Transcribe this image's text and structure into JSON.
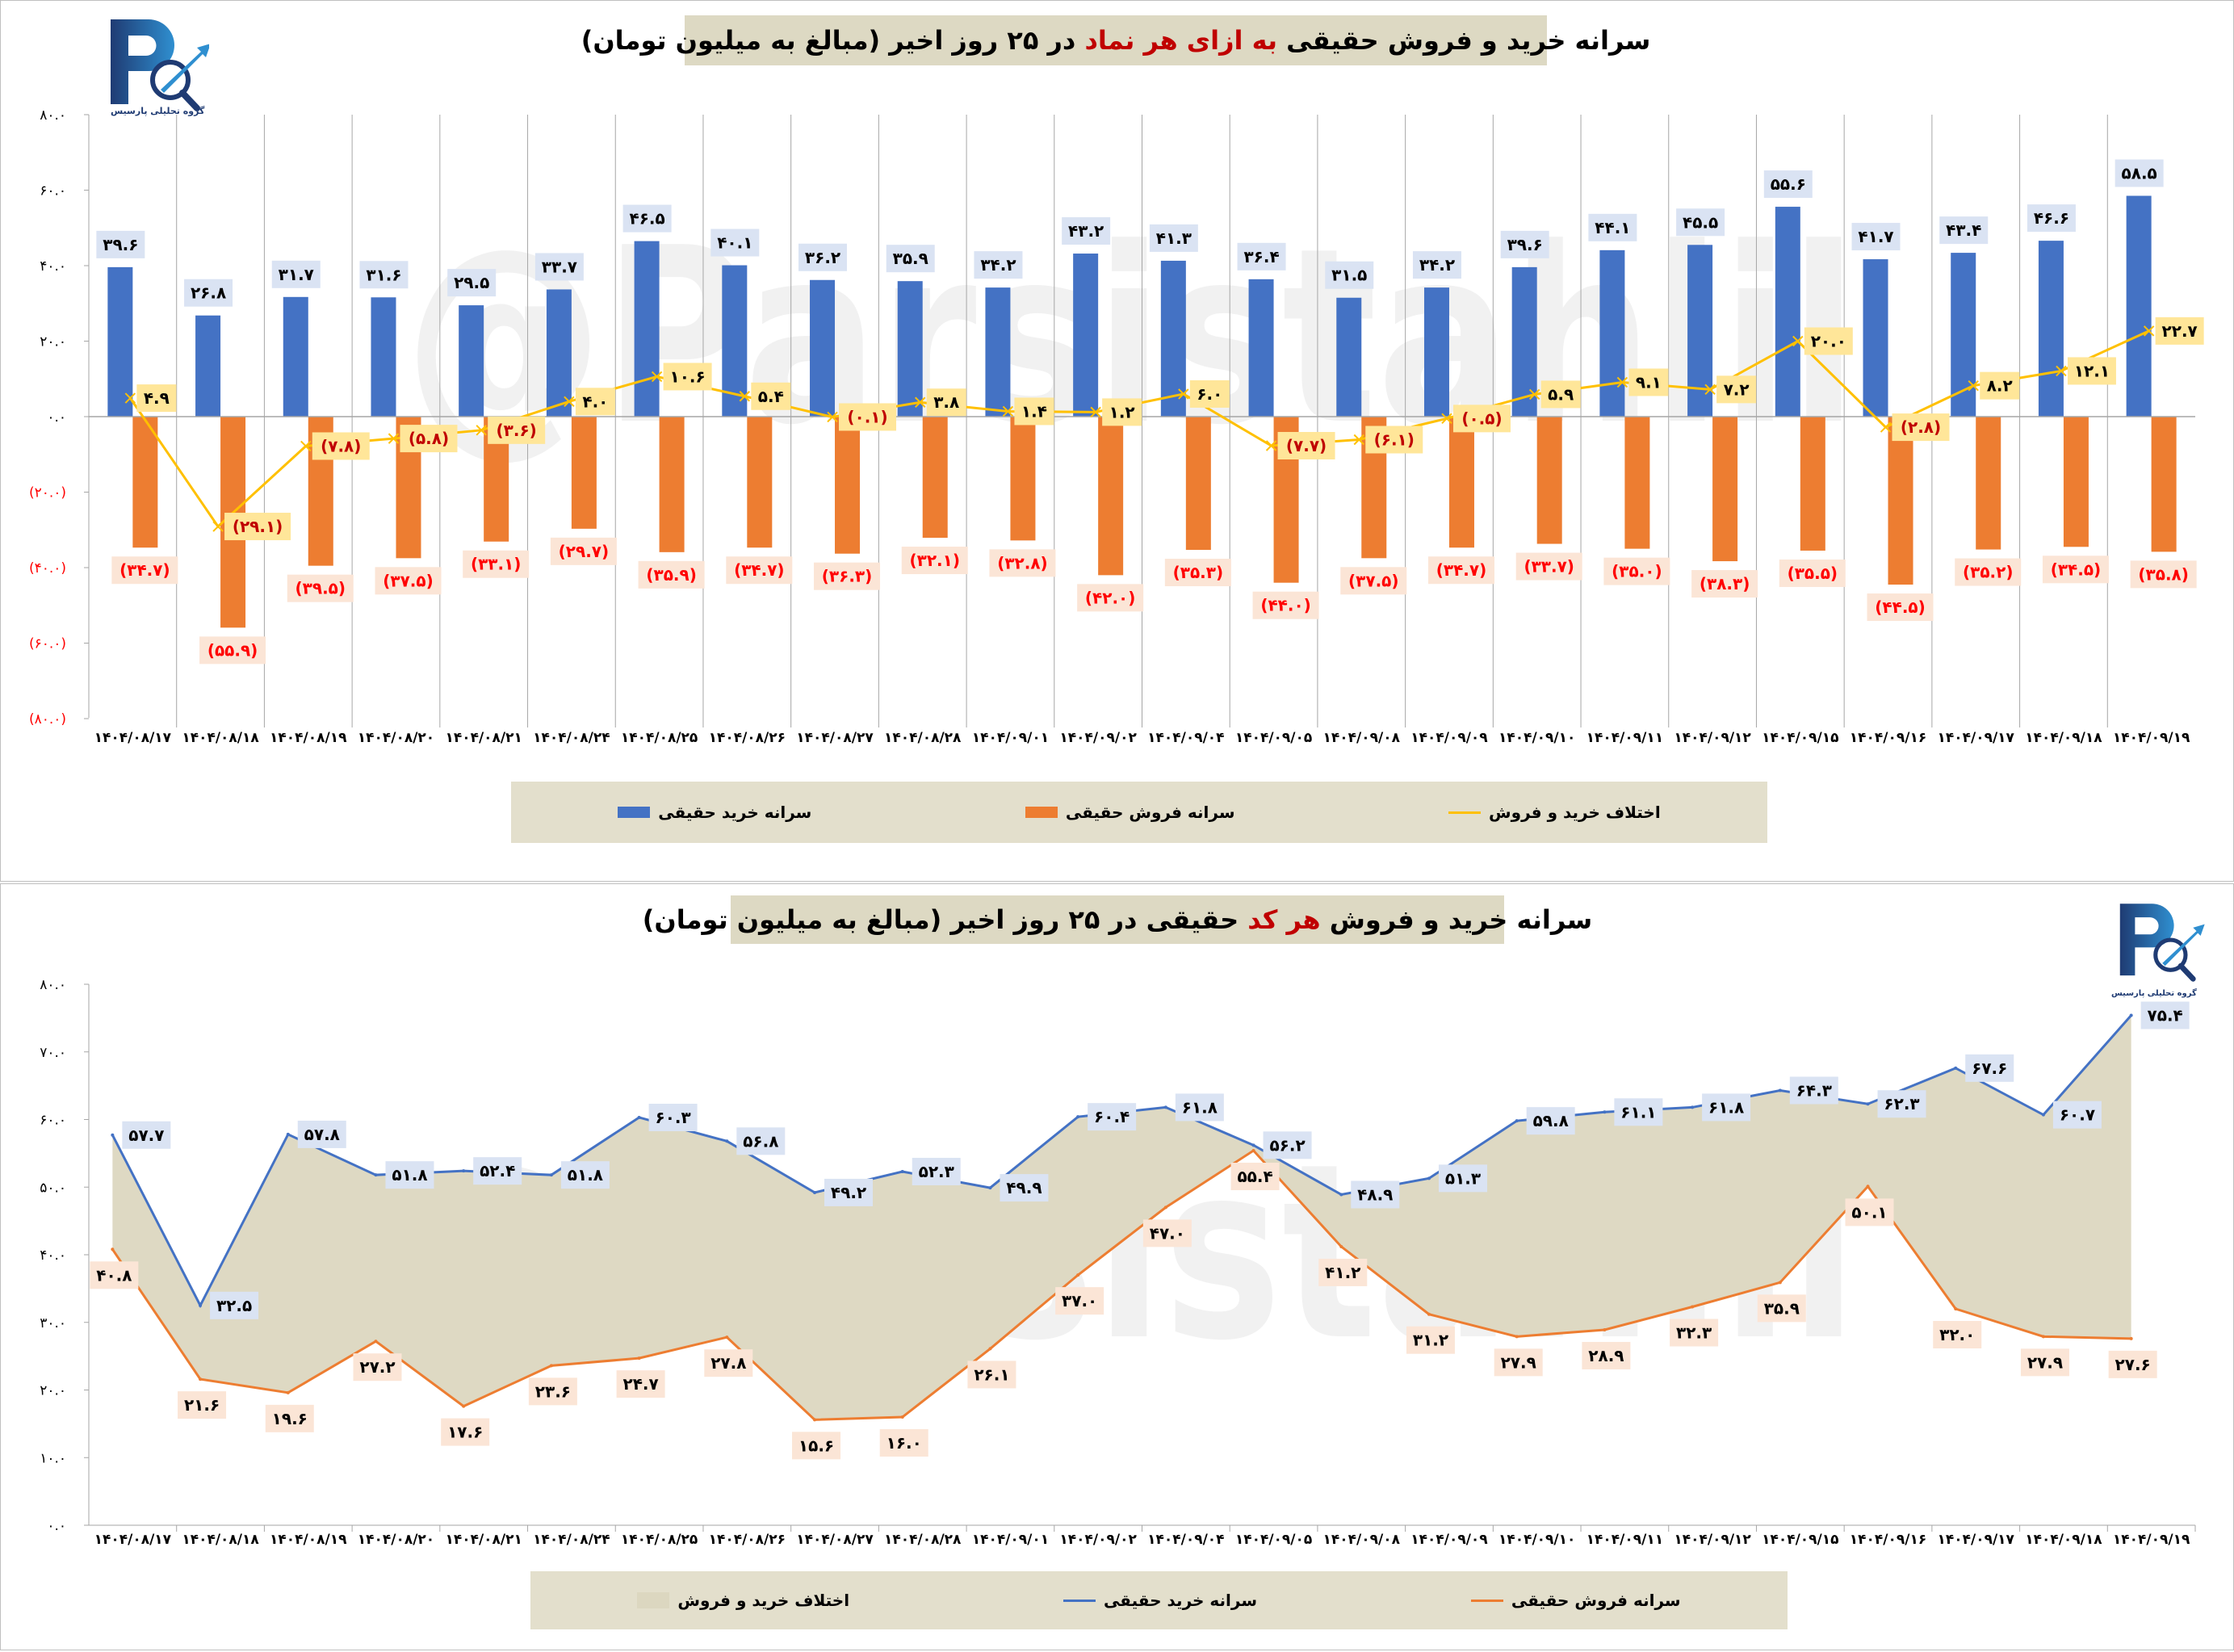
{
  "logo": {
    "text": "گروه تحلیلی پارسیس"
  },
  "watermark": "@Parsistahlil",
  "colors": {
    "buy": "#4472c4",
    "sell": "#ed7d31",
    "diff": "#ffc000",
    "area": "#dcd7c0",
    "title_red": "#c00000"
  },
  "chart_data": [
    {
      "type": "bar",
      "title": {
        "before": "سرانه خرید و فروش حقیقی",
        "highlight": "به ازای هر نماد",
        "after": "در ۲۵ روز اخیر (مبالغ به میلیون تومان)"
      },
      "categories": [
        "۱۴۰۴/۰۸/۱۷",
        "۱۴۰۴/۰۸/۱۸",
        "۱۴۰۴/۰۸/۱۹",
        "۱۴۰۴/۰۸/۲۰",
        "۱۴۰۴/۰۸/۲۱",
        "۱۴۰۴/۰۸/۲۴",
        "۱۴۰۴/۰۸/۲۵",
        "۱۴۰۴/۰۸/۲۶",
        "۱۴۰۴/۰۸/۲۷",
        "۱۴۰۴/۰۸/۲۸",
        "۱۴۰۴/۰۹/۰۱",
        "۱۴۰۴/۰۹/۰۲",
        "۱۴۰۴/۰۹/۰۴",
        "۱۴۰۴/۰۹/۰۵",
        "۱۴۰۴/۰۹/۰۸",
        "۱۴۰۴/۰۹/۰۹",
        "۱۴۰۴/۰۹/۱۰",
        "۱۴۰۴/۰۹/۱۱",
        "۱۴۰۴/۰۹/۱۲",
        "۱۴۰۴/۰۹/۱۵",
        "۱۴۰۴/۰۹/۱۶",
        "۱۴۰۴/۰۹/۱۷",
        "۱۴۰۴/۰۹/۱۸",
        "۱۴۰۴/۰۹/۱۹"
      ],
      "series": [
        {
          "name": "سرانه خرید حقیقی",
          "kind": "bar",
          "values": [
            39.6,
            26.8,
            31.7,
            31.6,
            29.5,
            33.7,
            46.5,
            40.1,
            36.2,
            35.9,
            34.2,
            43.2,
            41.3,
            36.4,
            31.5,
            34.2,
            39.6,
            44.1,
            45.5,
            55.6,
            41.7,
            43.4,
            46.6,
            58.5
          ]
        },
        {
          "name": "سرانه فروش حقیقی",
          "kind": "bar",
          "values": [
            -34.7,
            -55.9,
            -39.5,
            -37.5,
            -33.1,
            -29.7,
            -35.9,
            -34.7,
            -36.3,
            -32.1,
            -32.8,
            -42.0,
            -35.3,
            -44.0,
            -37.5,
            -34.7,
            -33.7,
            -35.0,
            -38.3,
            -35.5,
            -44.5,
            -35.2,
            -34.5,
            -35.8
          ]
        },
        {
          "name": "اختلاف خرید و فروش",
          "kind": "line",
          "values": [
            4.9,
            -29.1,
            -7.8,
            -5.8,
            -3.6,
            4.0,
            10.6,
            5.4,
            -0.1,
            3.8,
            1.4,
            1.2,
            6.0,
            -7.7,
            -6.1,
            -0.5,
            5.9,
            9.1,
            7.2,
            20.0,
            -2.8,
            8.2,
            12.1,
            22.7
          ]
        }
      ],
      "ylim": [
        -80,
        80
      ],
      "yticks": [
        80,
        60,
        40,
        20,
        0,
        -20,
        -40,
        -60,
        -80
      ],
      "grid": "vertical",
      "legend_placement": "bottom"
    },
    {
      "type": "line",
      "title": {
        "before": "سرانه خرید و فروش",
        "highlight": "هر کد",
        "after": "حقیقی در ۲۵ روز اخیر (مبالغ به میلیون تومان)"
      },
      "categories": [
        "۱۴۰۴/۰۸/۱۷",
        "۱۴۰۴/۰۸/۱۸",
        "۱۴۰۴/۰۸/۱۹",
        "۱۴۰۴/۰۸/۲۰",
        "۱۴۰۴/۰۸/۲۱",
        "۱۴۰۴/۰۸/۲۴",
        "۱۴۰۴/۰۸/۲۵",
        "۱۴۰۴/۰۸/۲۶",
        "۱۴۰۴/۰۸/۲۷",
        "۱۴۰۴/۰۸/۲۸",
        "۱۴۰۴/۰۹/۰۱",
        "۱۴۰۴/۰۹/۰۲",
        "۱۴۰۴/۰۹/۰۴",
        "۱۴۰۴/۰۹/۰۵",
        "۱۴۰۴/۰۹/۰۸",
        "۱۴۰۴/۰۹/۰۹",
        "۱۴۰۴/۰۹/۱۰",
        "۱۴۰۴/۰۹/۱۱",
        "۱۴۰۴/۰۹/۱۲",
        "۱۴۰۴/۰۹/۱۵",
        "۱۴۰۴/۰۹/۱۶",
        "۱۴۰۴/۰۹/۱۷",
        "۱۴۰۴/۰۹/۱۸",
        "۱۴۰۴/۰۹/۱۹"
      ],
      "series": [
        {
          "name": "اختلاف خرید و فروش",
          "kind": "area-between"
        },
        {
          "name": "سرانه خرید حقیقی",
          "kind": "line",
          "values": [
            57.7,
            32.5,
            57.8,
            51.8,
            52.4,
            51.8,
            60.3,
            56.8,
            49.2,
            52.3,
            49.9,
            60.4,
            61.8,
            56.2,
            48.9,
            51.3,
            59.8,
            61.1,
            61.8,
            64.3,
            62.3,
            67.6,
            60.7,
            75.4
          ]
        },
        {
          "name": "سرانه فروش حقیقی",
          "kind": "line",
          "values": [
            40.8,
            21.6,
            19.6,
            27.2,
            17.6,
            23.6,
            24.7,
            27.8,
            15.6,
            16.0,
            26.1,
            37.0,
            47.0,
            55.4,
            41.2,
            31.2,
            27.9,
            28.9,
            32.3,
            35.9,
            50.1,
            32.0,
            27.9,
            27.6
          ]
        }
      ],
      "ylim": [
        0,
        80
      ],
      "yticks": [
        80,
        70,
        60,
        50,
        40,
        30,
        20,
        10,
        0
      ],
      "grid": "none",
      "legend_placement": "bottom"
    }
  ]
}
